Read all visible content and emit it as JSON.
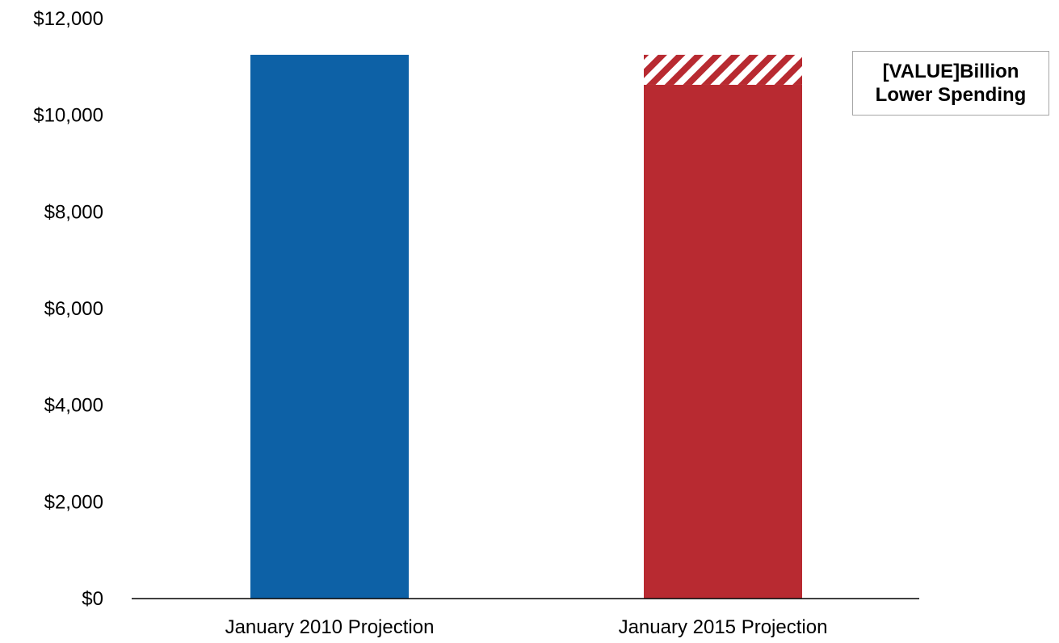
{
  "chart_data": {
    "type": "bar",
    "title": "",
    "xlabel": "",
    "ylabel": "",
    "ylim": [
      0,
      12000
    ],
    "y_ticks": [
      0,
      2000,
      4000,
      6000,
      8000,
      10000,
      12000
    ],
    "y_tick_labels": [
      "$0",
      "$2,000",
      "$4,000",
      "$6,000",
      "$8,000",
      "$10,000",
      "$12,000"
    ],
    "grid": false,
    "legend": "none",
    "categories": [
      "January 2010 Projection",
      "January 2015 Projection"
    ],
    "values": [
      11250,
      10630
    ],
    "reduction": {
      "category": "January 2015 Projection",
      "from": 10630,
      "to": 11250,
      "pattern": "diagonal-hatch"
    },
    "colors": {
      "bar_2010": "#0d61a6",
      "bar_2015": "#b82a31",
      "hatch": "#b82a31",
      "axis": "#000000",
      "annotation_border": "#a6a6a6"
    },
    "annotation": {
      "line1": "[VALUE]Billion",
      "line2": "Lower Spending"
    }
  }
}
